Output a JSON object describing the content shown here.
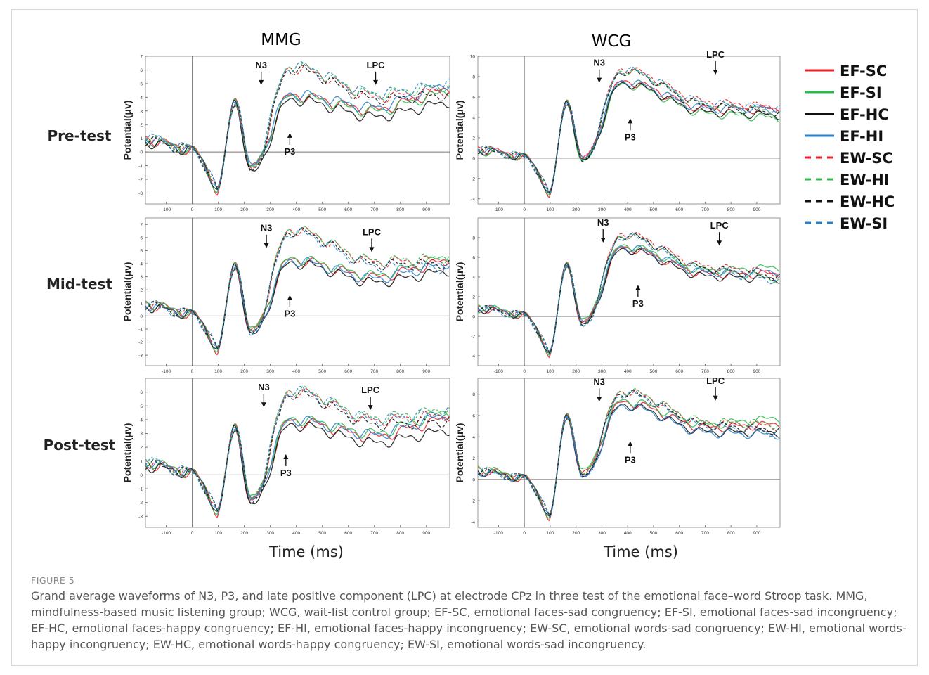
{
  "figure": {
    "label": "FIGURE 5",
    "caption": "Grand average waveforms of N3, P3, and late positive component (LPC) at electrode CPz in three test of the emotional face–word Stroop task. MMG, mindfulness-based music listening group; WCG, wait-list control group; EF-SC, emotional faces-sad congruency; EF-SI, emotional faces-sad incongruency; EF-HC, emotional faces-happy congruency; EF-HI, emotional faces-happy incongruency; EW-SC, emotional words-sad congruency; EW-HI, emotional words-happy incongruency; EW-HC, emotional words-happy congruency; EW-SI, emotional words-sad incongruency."
  },
  "chart_data": {
    "type": "line",
    "columns": [
      "MMG",
      "WCG"
    ],
    "rows": [
      "Pre-test",
      "Mid-test",
      "Post-test"
    ],
    "ylabel": "Potential(μv)",
    "xlabel": "Time (ms)",
    "xlim": [
      -180,
      990
    ],
    "xticks": [
      -100,
      0,
      100,
      200,
      300,
      400,
      500,
      600,
      700,
      800,
      900
    ],
    "legend": {
      "placement": "right",
      "entries": [
        {
          "name": "EF-SC",
          "color": "#e8202a",
          "dash": false
        },
        {
          "name": "EF-SI",
          "color": "#2db84b",
          "dash": false
        },
        {
          "name": "EF-HC",
          "color": "#111111",
          "dash": false
        },
        {
          "name": "EF-HI",
          "color": "#2a7fc9",
          "dash": false
        },
        {
          "name": "EW-SC",
          "color": "#e8202a",
          "dash": true
        },
        {
          "name": "EW-HI",
          "color": "#2db84b",
          "dash": true
        },
        {
          "name": "EW-HC",
          "color": "#111111",
          "dash": true
        },
        {
          "name": "EW-SI",
          "color": "#2a7fc9",
          "dash": true
        }
      ]
    },
    "panels": [
      {
        "group": "MMG",
        "test": "Pre-test",
        "ylim": [
          -3.8,
          7
        ],
        "yticks": [
          -3,
          -2,
          -1,
          0,
          1,
          2,
          3,
          4,
          5,
          6,
          7
        ],
        "annotations": [
          {
            "text": "N3",
            "x": 265,
            "y": 4.9,
            "arrow": "down"
          },
          {
            "text": "P3",
            "x": 375,
            "y": 1.4,
            "arrow": "up"
          },
          {
            "text": "LPC",
            "x": 705,
            "y": 4.9,
            "arrow": "down"
          }
        ],
        "peaks": {
          "n1": -2.9,
          "p2": 3.8,
          "n2": -1.4,
          "p3solid": 4.0,
          "p3dash": 6.1,
          "end": 4.3
        },
        "series_spread": [
          0.4,
          0.2,
          -0.6,
          0.8,
          0.2,
          0.6,
          -0.1,
          0.7
        ]
      },
      {
        "group": "WCG",
        "test": "Pre-test",
        "ylim": [
          -4.5,
          10
        ],
        "yticks": [
          -4,
          -2,
          0,
          2,
          4,
          6,
          8,
          10
        ],
        "annotations": [
          {
            "text": "N3",
            "x": 290,
            "y": 7.4,
            "arrow": "down"
          },
          {
            "text": "P3",
            "x": 410,
            "y": 3.9,
            "arrow": "up"
          },
          {
            "text": "LPC",
            "x": 740,
            "y": 8.2,
            "arrow": "down"
          }
        ],
        "peaks": {
          "n1": -3.6,
          "p2": 5.6,
          "n2": -0.3,
          "p3solid": 7.4,
          "p3dash": 8.6,
          "end": 4.5
        },
        "series_spread": [
          0.3,
          -0.6,
          -0.3,
          0.4,
          0.5,
          0.0,
          -0.2,
          0.3
        ]
      },
      {
        "group": "MMG",
        "test": "Mid-test",
        "ylim": [
          -3.8,
          7.5
        ],
        "yticks": [
          -3,
          -2,
          -1,
          0,
          1,
          2,
          3,
          4,
          5,
          6,
          7
        ],
        "annotations": [
          {
            "text": "N3",
            "x": 285,
            "y": 5.2,
            "arrow": "down"
          },
          {
            "text": "P3",
            "x": 375,
            "y": 1.6,
            "arrow": "up"
          },
          {
            "text": "LPC",
            "x": 690,
            "y": 4.9,
            "arrow": "down"
          }
        ],
        "peaks": {
          "n1": -2.7,
          "p2": 4.0,
          "n2": -1.4,
          "p3solid": 4.2,
          "p3dash": 6.5,
          "end": 4.0
        },
        "series_spread": [
          0.3,
          0.6,
          -0.5,
          0.1,
          0.3,
          0.5,
          0.0,
          -0.3
        ]
      },
      {
        "group": "WCG",
        "test": "Mid-test",
        "ylim": [
          -5,
          10
        ],
        "yticks": [
          -4,
          -2,
          0,
          2,
          4,
          6,
          8
        ],
        "annotations": [
          {
            "text": "N3",
            "x": 305,
            "y": 7.5,
            "arrow": "down"
          },
          {
            "text": "P3",
            "x": 440,
            "y": 3.2,
            "arrow": "up"
          },
          {
            "text": "LPC",
            "x": 755,
            "y": 7.2,
            "arrow": "down"
          }
        ],
        "peaks": {
          "n1": -3.9,
          "p2": 5.4,
          "n2": -0.9,
          "p3solid": 6.9,
          "p3dash": 8.3,
          "end": 4.1
        },
        "series_spread": [
          0.2,
          0.9,
          -0.3,
          0.5,
          0.3,
          -0.3,
          -0.1,
          -0.5
        ]
      },
      {
        "group": "MMG",
        "test": "Post-test",
        "ylim": [
          -3.8,
          7
        ],
        "yticks": [
          -3,
          -2,
          -1,
          0,
          1,
          2,
          3,
          4,
          5,
          6
        ],
        "annotations": [
          {
            "text": "N3",
            "x": 275,
            "y": 4.9,
            "arrow": "down"
          },
          {
            "text": "P3",
            "x": 360,
            "y": 1.5,
            "arrow": "up"
          },
          {
            "text": "LPC",
            "x": 685,
            "y": 4.7,
            "arrow": "down"
          }
        ],
        "peaks": {
          "n1": -2.8,
          "p2": 3.6,
          "n2": -2.0,
          "p3solid": 3.9,
          "p3dash": 6.0,
          "end": 4.2
        },
        "series_spread": [
          0.0,
          0.5,
          -0.9,
          0.3,
          0.2,
          0.6,
          -0.3,
          0.4
        ]
      },
      {
        "group": "WCG",
        "test": "Post-test",
        "ylim": [
          -4.5,
          9.5
        ],
        "yticks": [
          -4,
          -2,
          0,
          2,
          4,
          6,
          8
        ],
        "annotations": [
          {
            "text": "N3",
            "x": 290,
            "y": 7.3,
            "arrow": "down"
          },
          {
            "text": "P3",
            "x": 410,
            "y": 3.6,
            "arrow": "up"
          },
          {
            "text": "LPC",
            "x": 740,
            "y": 7.4,
            "arrow": "down"
          }
        ],
        "peaks": {
          "n1": -3.6,
          "p2": 6.1,
          "n2": 0.3,
          "p3solid": 7.1,
          "p3dash": 8.2,
          "end": 4.8
        },
        "series_spread": [
          0.4,
          1.0,
          -0.4,
          -0.6,
          0.2,
          0.4,
          -0.2,
          -0.4
        ]
      }
    ]
  }
}
